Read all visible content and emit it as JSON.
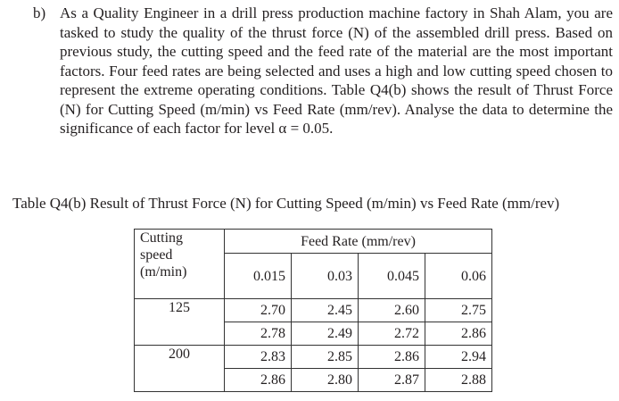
{
  "question": {
    "label": "b)",
    "text": "As a Quality Engineer in a drill press production machine factory in Shah Alam, you are tasked to study the quality of the thrust force (N) of the assembled drill press. Based on previous study, the cutting speed and the feed rate of the material are the most important factors. Four feed rates are being selected and uses a high and low cutting speed chosen to represent the extreme operating conditions. Table Q4(b) shows the result of Thrust Force (N) for Cutting Speed (m/min) vs Feed Rate (mm/rev). Analyse the data to determine the significance of each factor for level α = 0.05."
  },
  "table": {
    "caption": "Table Q4(b) Result of Thrust Force (N) for Cutting Speed (m/min) vs Feed Rate (mm/rev)",
    "row_header": "Cutting speed (m/min)",
    "row_header_lines": [
      "Cutting",
      "speed",
      "(m/min)"
    ],
    "column_group_header": "Feed Rate (mm/rev)",
    "columns": [
      "0.015",
      "0.03",
      "0.045",
      "0.06"
    ],
    "groups": [
      {
        "speed": "125",
        "rows": [
          [
            "2.70",
            "2.45",
            "2.60",
            "2.75"
          ],
          [
            "2.78",
            "2.49",
            "2.72",
            "2.86"
          ]
        ]
      },
      {
        "speed": "200",
        "rows": [
          [
            "2.83",
            "2.85",
            "2.86",
            "2.94"
          ],
          [
            "2.86",
            "2.80",
            "2.87",
            "2.88"
          ]
        ]
      }
    ]
  }
}
